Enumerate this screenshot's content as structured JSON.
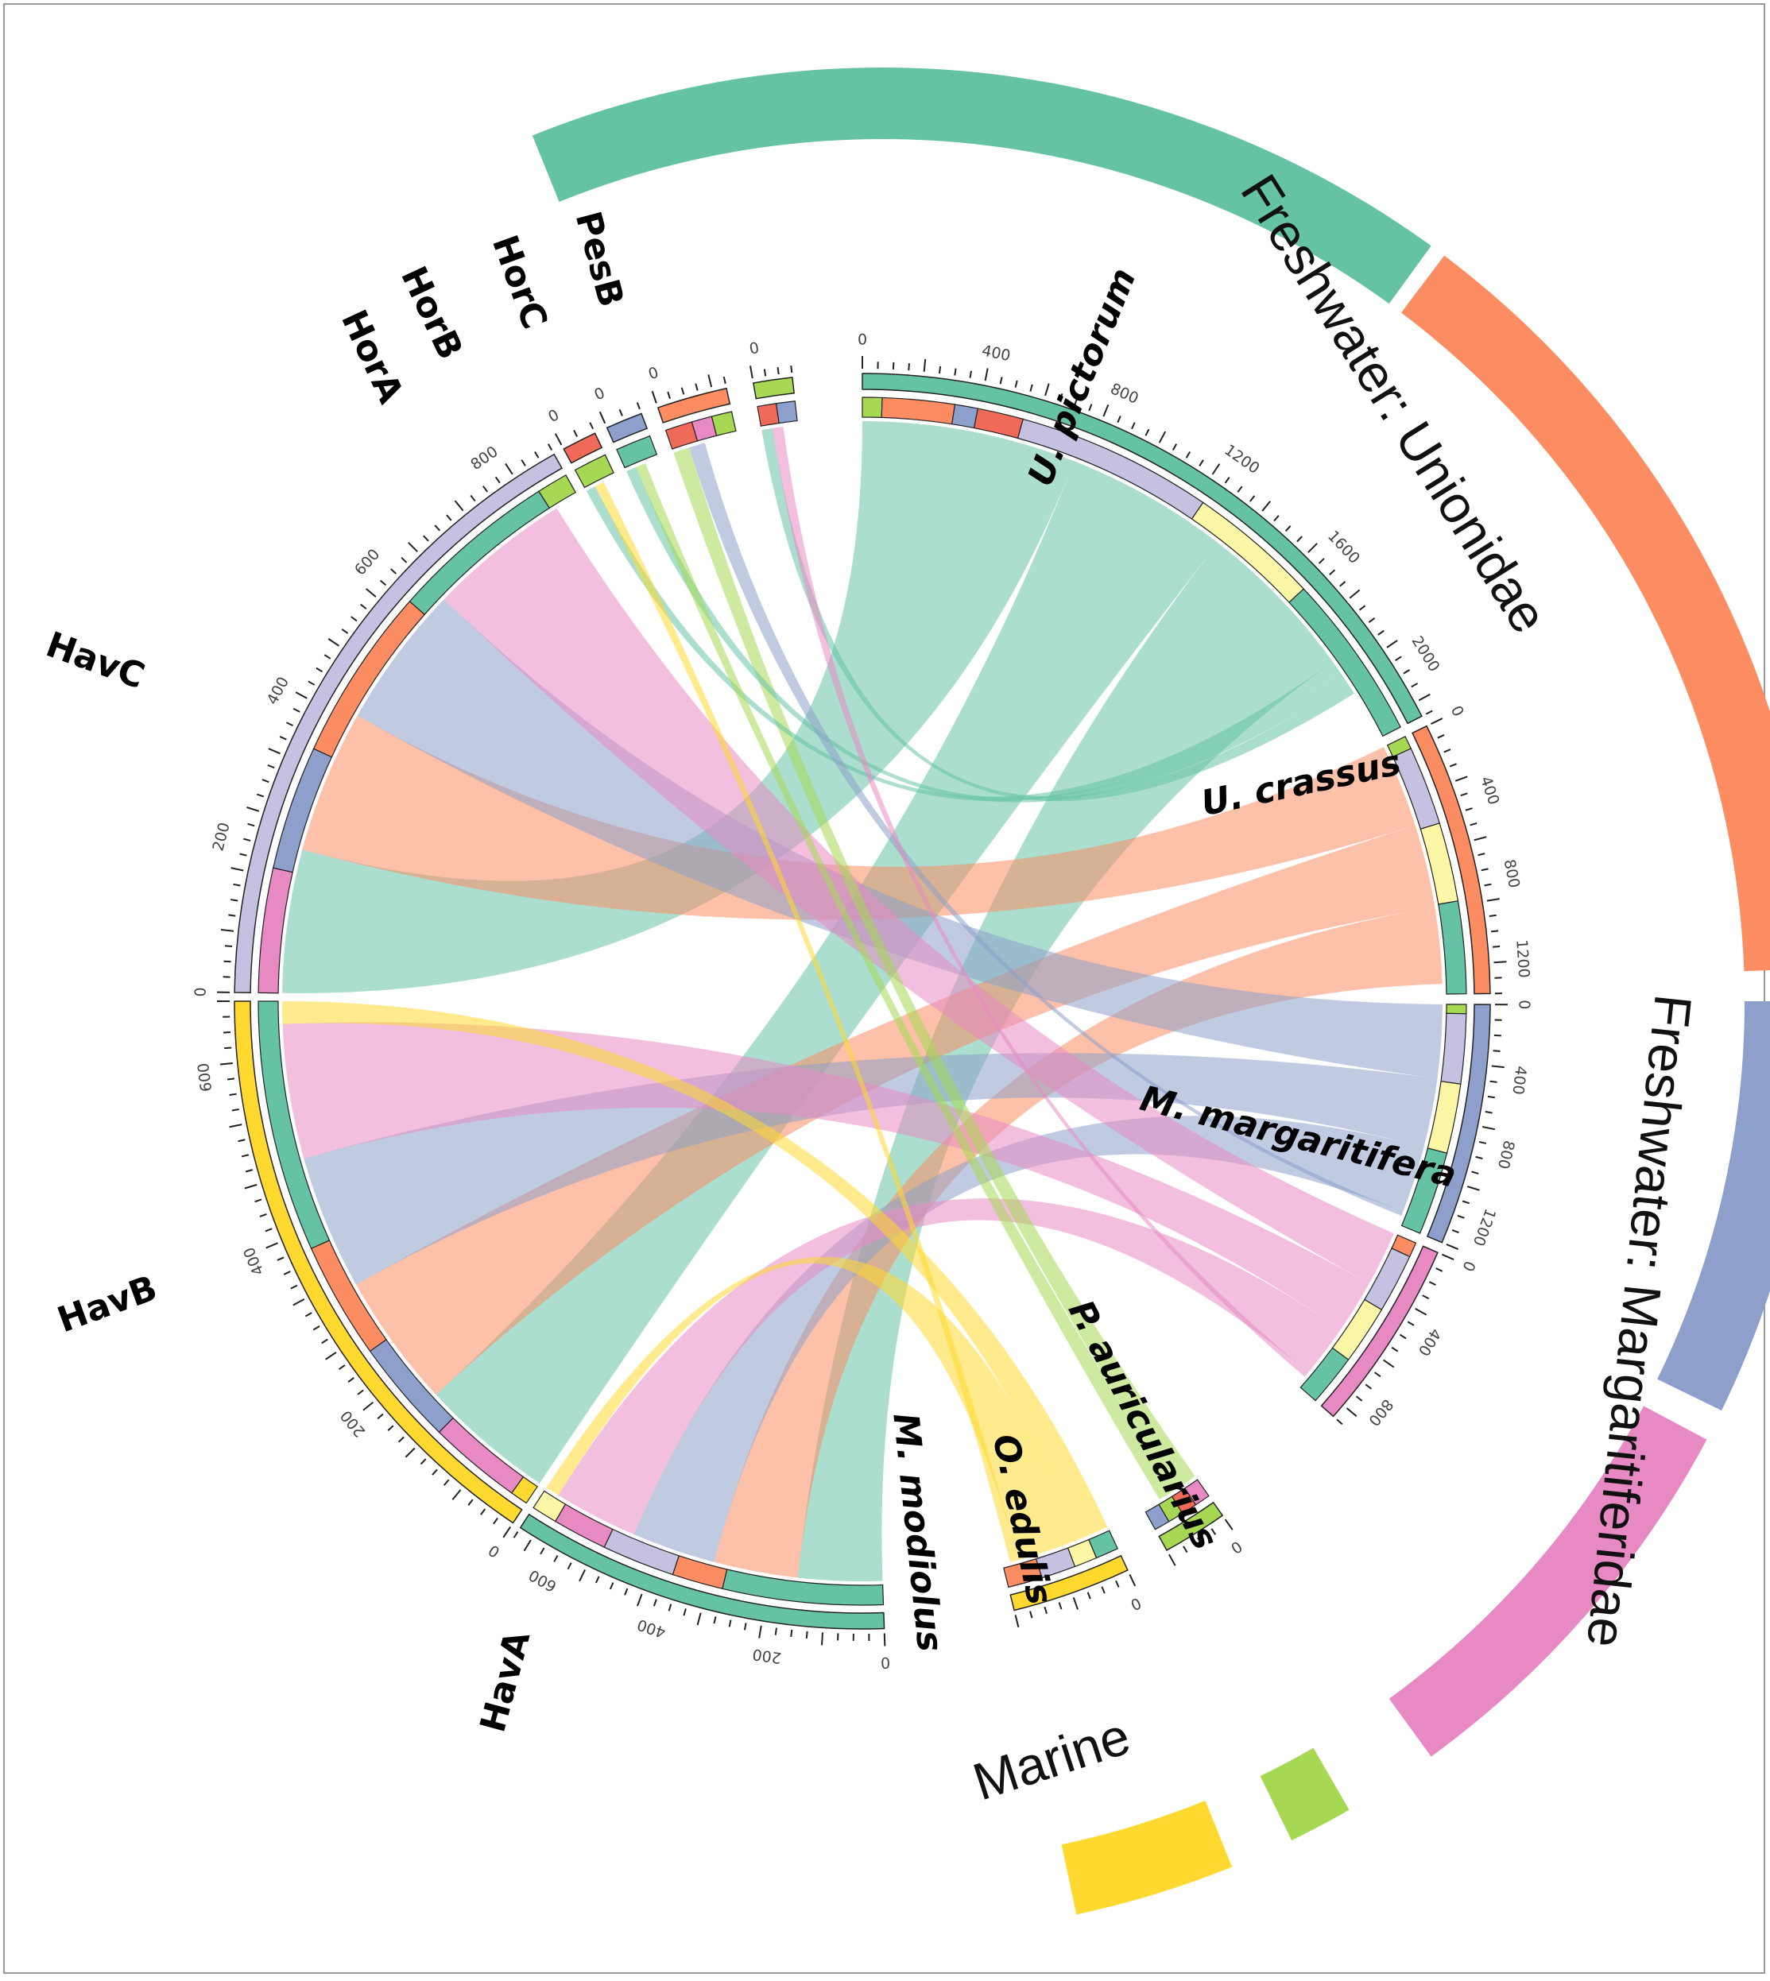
{
  "colors": {
    "teal": "#66c2a5",
    "salmon": "#fc8d62",
    "blue": "#8da0cb",
    "pink": "#e78ac3",
    "lime": "#a6d854",
    "yellow": "#ffd92f",
    "lavender": "#c5c1e0",
    "paleyellow": "#fcf7a6",
    "red": "#f06a5a"
  },
  "sectors": [
    {
      "id": "upic",
      "label": "U. pictorum",
      "color": "teal",
      "ticks": [
        "0",
        "400",
        "800",
        "1200",
        "1600",
        "2000"
      ]
    },
    {
      "id": "ucra",
      "label": "U. crassus",
      "color": "salmon",
      "ticks": [
        "0",
        "400",
        "800",
        "1200"
      ]
    },
    {
      "id": "mmar",
      "label": "M. margaritifera",
      "color": "blue",
      "ticks": [
        "0",
        "400",
        "800",
        "1200"
      ]
    },
    {
      "id": "paur",
      "label": "P. auricularius",
      "color": "pink",
      "ticks": [
        "0",
        "400",
        "800"
      ]
    },
    {
      "id": "oedu",
      "label": "O. edulis",
      "color": "lime",
      "ticks": [
        "0"
      ]
    },
    {
      "id": "mmod",
      "label": "M. modiolus",
      "color": "yellow",
      "ticks": [
        "0"
      ]
    },
    {
      "id": "hava",
      "label": "HavA",
      "color": "teal",
      "ticks": [
        "0",
        "200",
        "400",
        "600"
      ]
    },
    {
      "id": "havb",
      "label": "HavB",
      "color": "yellow",
      "ticks": [
        "0",
        "200",
        "400",
        "600"
      ]
    },
    {
      "id": "havc",
      "label": "HavC",
      "color": "lavender",
      "ticks": [
        "0",
        "200",
        "400",
        "600",
        "800"
      ]
    },
    {
      "id": "hora",
      "label": "HorA",
      "color": "red",
      "ticks": [
        "0"
      ]
    },
    {
      "id": "horb",
      "label": "HorB",
      "color": "blue",
      "ticks": [
        "0"
      ]
    },
    {
      "id": "horc",
      "label": "HorC",
      "color": "salmon",
      "ticks": [
        "0"
      ]
    },
    {
      "id": "pesb",
      "label": "PesB",
      "color": "lime",
      "ticks": [
        "0"
      ]
    }
  ],
  "groups": [
    {
      "id": "unionidae",
      "label": "Freshwater: Unionidae"
    },
    {
      "id": "margaritiferidae",
      "label": "Freshwater: Margaritiferidae"
    },
    {
      "id": "marine",
      "label": "Marine"
    }
  ],
  "links": [
    {
      "from": "upic",
      "to": "havc",
      "color": "teal"
    },
    {
      "from": "upic",
      "to": "havb",
      "color": "teal"
    },
    {
      "from": "upic",
      "to": "hava",
      "color": "teal"
    },
    {
      "from": "ucra",
      "to": "havc",
      "color": "salmon"
    },
    {
      "from": "ucra",
      "to": "havb",
      "color": "salmon"
    },
    {
      "from": "ucra",
      "to": "hava",
      "color": "salmon"
    },
    {
      "from": "mmar",
      "to": "havc",
      "color": "blue"
    },
    {
      "from": "mmar",
      "to": "havb",
      "color": "blue"
    },
    {
      "from": "mmar",
      "to": "hava",
      "color": "blue"
    },
    {
      "from": "paur",
      "to": "havc",
      "color": "pink"
    },
    {
      "from": "paur",
      "to": "havb",
      "color": "pink"
    },
    {
      "from": "paur",
      "to": "hava",
      "color": "pink"
    },
    {
      "from": "mmod",
      "to": "havb",
      "color": "yellow"
    },
    {
      "from": "mmod",
      "to": "hava",
      "color": "yellow"
    },
    {
      "from": "oedu",
      "to": "horc",
      "color": "lime"
    },
    {
      "from": "upic",
      "to": "hora",
      "color": "teal"
    },
    {
      "from": "upic",
      "to": "horb",
      "color": "teal"
    },
    {
      "from": "upic",
      "to": "pesb",
      "color": "teal"
    },
    {
      "from": "mmar",
      "to": "horc",
      "color": "blue"
    },
    {
      "from": "paur",
      "to": "pesb",
      "color": "pink"
    },
    {
      "from": "oedu",
      "to": "horb",
      "color": "lime"
    },
    {
      "from": "mmod",
      "to": "hora",
      "color": "yellow"
    }
  ]
}
